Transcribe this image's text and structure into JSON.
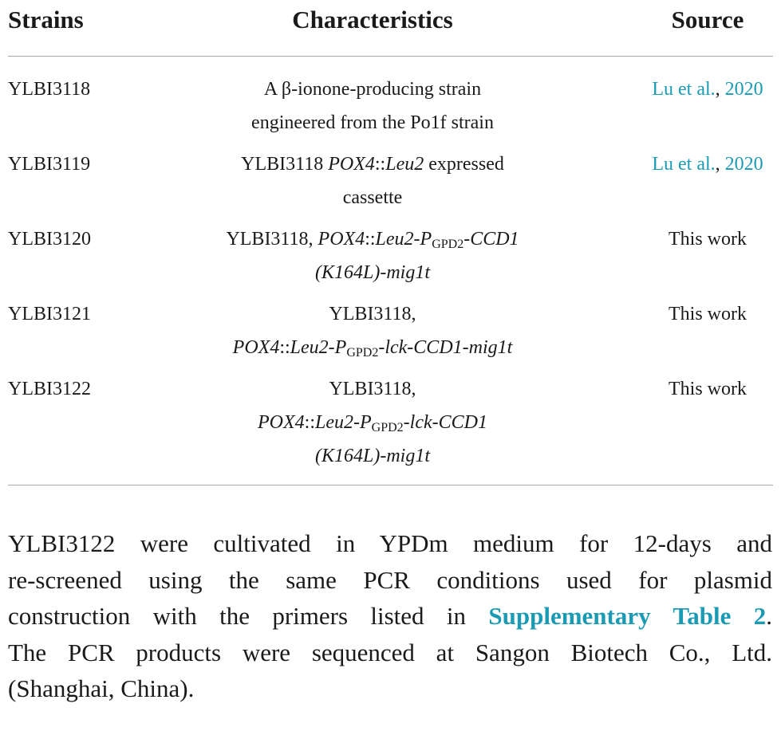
{
  "table": {
    "header": [
      "Strains",
      "Characteristics",
      "Source"
    ],
    "rows": [
      {
        "strain": "YLBI3118",
        "characteristics": [
          [
            {
              "text": "A β-ionone-producing strain"
            }
          ],
          [
            {
              "text": "engineered from the Po1f strain"
            }
          ]
        ],
        "source": [
          [
            {
              "text": "Lu et al.",
              "style": "link"
            },
            {
              "text": ", "
            },
            {
              "text": "2020",
              "style": "link"
            }
          ]
        ]
      },
      {
        "strain": "YLBI3119",
        "characteristics": [
          [
            {
              "text": "YLBI3118 "
            },
            {
              "text": "POX4",
              "style": "italic"
            },
            {
              "text": "::"
            },
            {
              "text": "Leu2",
              "style": "italic"
            },
            {
              "text": " expressed"
            }
          ],
          [
            {
              "text": "cassette"
            }
          ]
        ],
        "source": [
          [
            {
              "text": "Lu et al.",
              "style": "link"
            },
            {
              "text": ", "
            },
            {
              "text": "2020",
              "style": "link"
            }
          ]
        ]
      },
      {
        "strain": "YLBI3120",
        "characteristics": [
          [
            {
              "text": "YLBI3118, "
            },
            {
              "text": "POX4",
              "style": "italic"
            },
            {
              "text": "::"
            },
            {
              "text": "Leu2-P",
              "style": "italic"
            },
            {
              "text": "GPD2",
              "style": "sub"
            },
            {
              "text": "-CCD1",
              "style": "italic"
            }
          ],
          [
            {
              "text": "(K164L)-mig1t",
              "style": "italic"
            }
          ]
        ],
        "source": [
          [
            {
              "text": "This work"
            }
          ]
        ]
      },
      {
        "strain": "YLBI3121",
        "characteristics": [
          [
            {
              "text": "YLBI3118,"
            }
          ],
          [
            {
              "text": "POX4",
              "style": "italic"
            },
            {
              "text": "::"
            },
            {
              "text": "Leu2-P",
              "style": "italic"
            },
            {
              "text": "GPD2",
              "style": "sub"
            },
            {
              "text": "-lck-CCD1-mig1t",
              "style": "italic"
            }
          ]
        ],
        "source": [
          [
            {
              "text": "This work"
            }
          ]
        ]
      },
      {
        "strain": "YLBI3122",
        "characteristics": [
          [
            {
              "text": "YLBI3118,"
            }
          ],
          [
            {
              "text": "POX4",
              "style": "italic"
            },
            {
              "text": "::"
            },
            {
              "text": "Leu2-P",
              "style": "italic"
            },
            {
              "text": "GPD2",
              "style": "sub"
            },
            {
              "text": "-lck-CCD1",
              "style": "italic"
            }
          ],
          [
            {
              "text": "(K164L)-mig1t",
              "style": "italic"
            }
          ]
        ],
        "source": [
          [
            {
              "text": "This work"
            }
          ]
        ]
      }
    ]
  },
  "paragraph": [
    [
      {
        "text": "YLBI3122 were cultivated in YPDm medium for 12-days and"
      }
    ],
    [
      {
        "text": "re-screened using the same PCR conditions used for plasmid"
      }
    ],
    [
      {
        "text": "construction with the primers listed in "
      },
      {
        "text": "Supplementary Table 2",
        "style": "link"
      },
      {
        "text": "."
      }
    ],
    [
      {
        "text": "The PCR products were sequenced at Sangon Biotech Co., Ltd."
      }
    ],
    [
      {
        "text": "(Shanghai, China)."
      }
    ]
  ]
}
